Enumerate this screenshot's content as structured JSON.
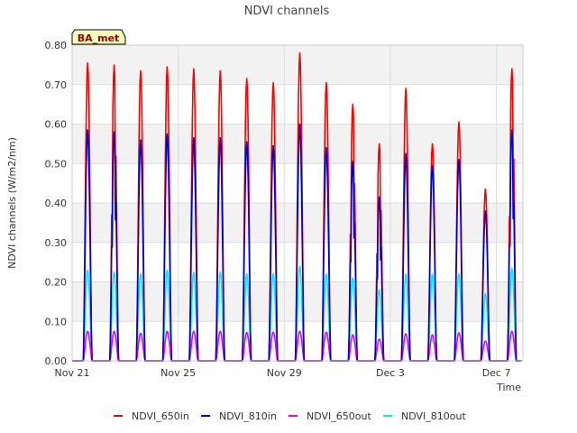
{
  "chart_data": {
    "type": "line",
    "title": "NDVI channels",
    "xlabel": "Time",
    "ylabel": "NDVI channels (W/m2/nm)",
    "annotation": "BA_met",
    "ylim": [
      0,
      0.8
    ],
    "yticks": [
      "0.00",
      "0.10",
      "0.20",
      "0.30",
      "0.40",
      "0.50",
      "0.60",
      "0.70",
      "0.80"
    ],
    "xlim_days": [
      21,
      38
    ],
    "xticks": [
      {
        "day": 21,
        "label": "Nov 21"
      },
      {
        "day": 25,
        "label": "Nov 25"
      },
      {
        "day": 29,
        "label": "Nov 29"
      },
      {
        "day": 33,
        "label": "Dec 3"
      },
      {
        "day": 37,
        "label": "Dec 7"
      }
    ],
    "grid": true,
    "legend_position": "bottom",
    "series": [
      {
        "name": "NDVI_650in",
        "color": "#ff0000",
        "peaks": [
          0.755,
          0.75,
          0.735,
          0.745,
          0.74,
          0.735,
          0.715,
          0.705,
          0.78,
          0.705,
          0.65,
          0.55,
          0.69,
          0.55,
          0.605,
          0.435,
          0.74
        ]
      },
      {
        "name": "NDVI_810in",
        "color": "#0000cc",
        "peaks": [
          0.585,
          0.58,
          0.56,
          0.575,
          0.565,
          0.565,
          0.555,
          0.545,
          0.6,
          0.54,
          0.505,
          0.415,
          0.525,
          0.495,
          0.51,
          0.38,
          0.585
        ]
      },
      {
        "name": "NDVI_650out",
        "color": "#ee00ee",
        "peaks": [
          0.075,
          0.075,
          0.07,
          0.075,
          0.075,
          0.075,
          0.072,
          0.073,
          0.075,
          0.073,
          0.066,
          0.055,
          0.069,
          0.066,
          0.071,
          0.05,
          0.075
        ]
      },
      {
        "name": "NDVI_810out",
        "color": "#00eeee",
        "peaks": [
          0.23,
          0.225,
          0.22,
          0.23,
          0.225,
          0.225,
          0.22,
          0.22,
          0.24,
          0.22,
          0.21,
          0.18,
          0.22,
          0.22,
          0.22,
          0.17,
          0.235
        ]
      }
    ]
  }
}
